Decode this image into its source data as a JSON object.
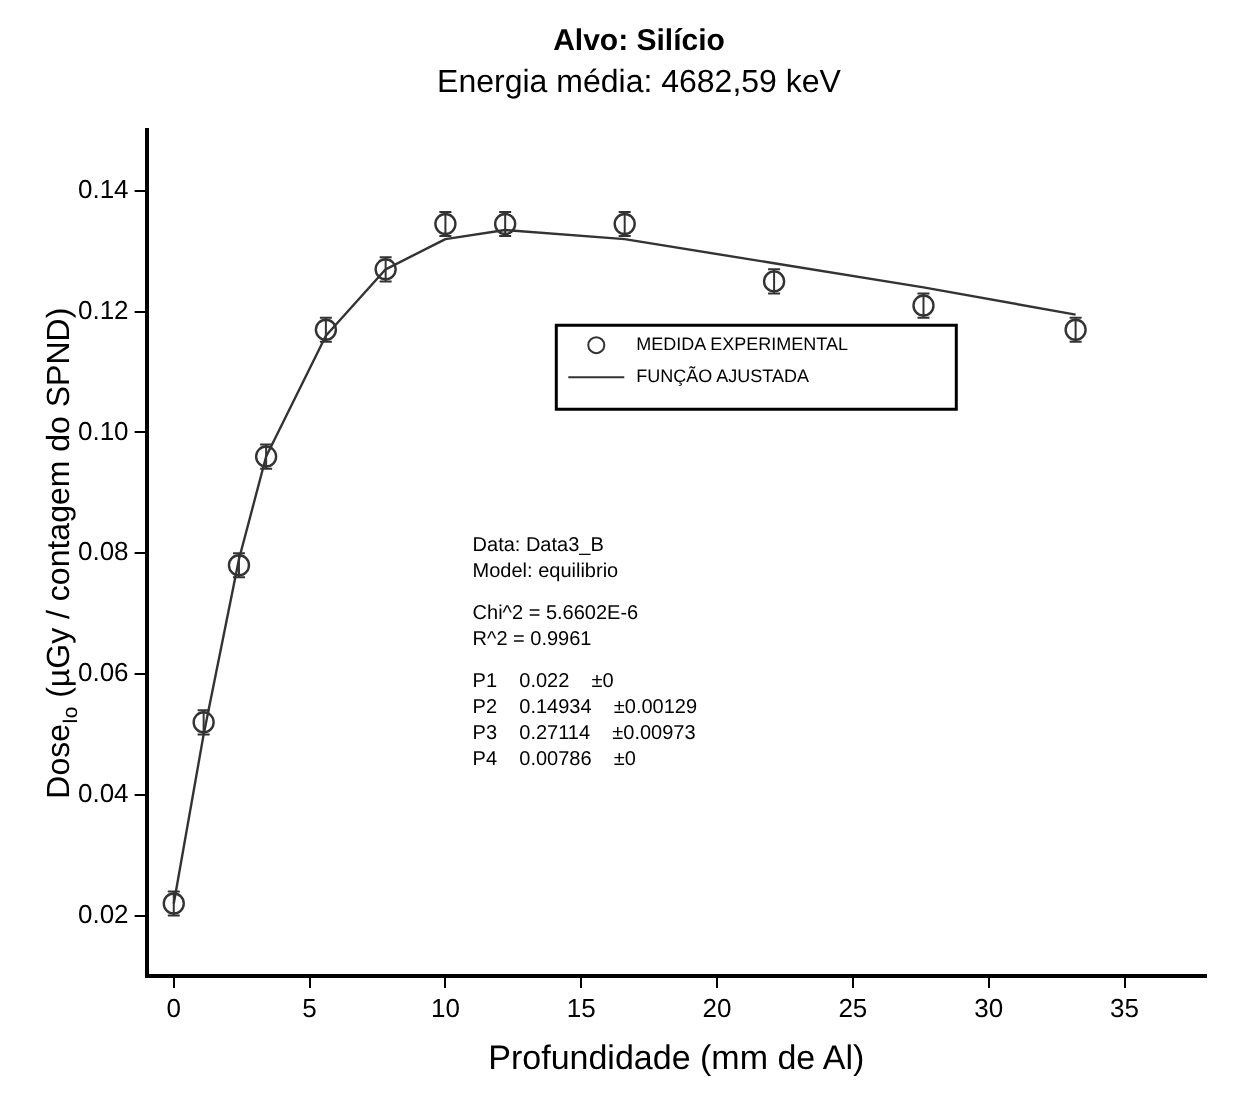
{
  "chart_data": {
    "type": "scatter",
    "title": "Alvo: Silício",
    "subtitle": "Energia média: 4682,59 keV",
    "xlabel": "Profundidade (mm de Al)",
    "ylabel": "Dose$_{Io}$ (µGy / contagem do SPND)",
    "xlim": [
      -1,
      38
    ],
    "ylim": [
      0.01,
      0.15
    ],
    "xticks": [
      0,
      5,
      10,
      15,
      20,
      25,
      30,
      35
    ],
    "yticks": [
      0.02,
      0.04,
      0.06,
      0.08,
      {
        "value": 0.1,
        "label": "0.10"
      },
      0.12,
      0.14
    ],
    "grid": false,
    "legend": "center",
    "marker": "circle",
    "series": [
      {
        "name": "MEDIDA EXPERIMENTAL",
        "color": "#333333",
        "x": [
          0,
          1.1,
          2.4,
          3.4,
          5.6,
          7.8,
          10,
          12.2,
          16.6,
          22.1,
          27.6,
          33.2
        ],
        "values": [
          0.022,
          0.052,
          0.078,
          0.096,
          0.117,
          0.127,
          0.1345,
          0.1345,
          0.1345,
          0.125,
          0.121,
          0.117
        ],
        "errors": [
          0.002,
          0.002,
          0.002,
          0.002,
          0.002,
          0.002,
          0.002,
          0.002,
          0.002,
          0.002,
          0.002,
          0.002
        ]
      },
      {
        "name": "FUNÇÃO AJUSTADA",
        "type": "line",
        "color": "#333333",
        "marker": "none",
        "line_style": "solid",
        "x": [
          0,
          1.1,
          2.4,
          3.4,
          5.6,
          7.8,
          10,
          12.2,
          16.6,
          22.1,
          27.6,
          33.2
        ],
        "values": [
          0.022,
          0.05,
          0.079,
          0.096,
          0.116,
          0.127,
          0.132,
          0.1335,
          0.132,
          0.128,
          0.124,
          0.1195
        ]
      }
    ],
    "annotations": [
      "Data: Data3_B",
      "Model: equilibrio",
      "Chi^2 = 5.6602E-6",
      "R^2 = 0.9961",
      "P1    0.022    ±0",
      "P2    0.14934    ±0.00129",
      "P3    0.27114    ±0.00973",
      "P4    0.00786    ±0"
    ]
  }
}
